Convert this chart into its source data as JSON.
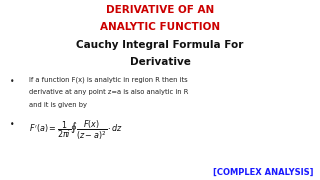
{
  "title_line1": "DERIVATIVE OF AN",
  "title_line2": "ANALYTIC FUNCTION",
  "title_color": "#cc0000",
  "subtitle_line1": "Cauchy Integral Formula For",
  "subtitle_line2": "Derivative",
  "subtitle_color": "#111111",
  "bullet1_line1": "If a function F(x) is analytic in region R then its",
  "bullet1_line2": "derivative at any point z=a is also analytic in R",
  "bullet1_line3": "and it is given by",
  "bullet1_color": "#222222",
  "formula_color": "#111111",
  "tag": "[COMPLEX ANALYSIS]",
  "tag_color": "#1a1aff",
  "bg_color": "#ffffff"
}
